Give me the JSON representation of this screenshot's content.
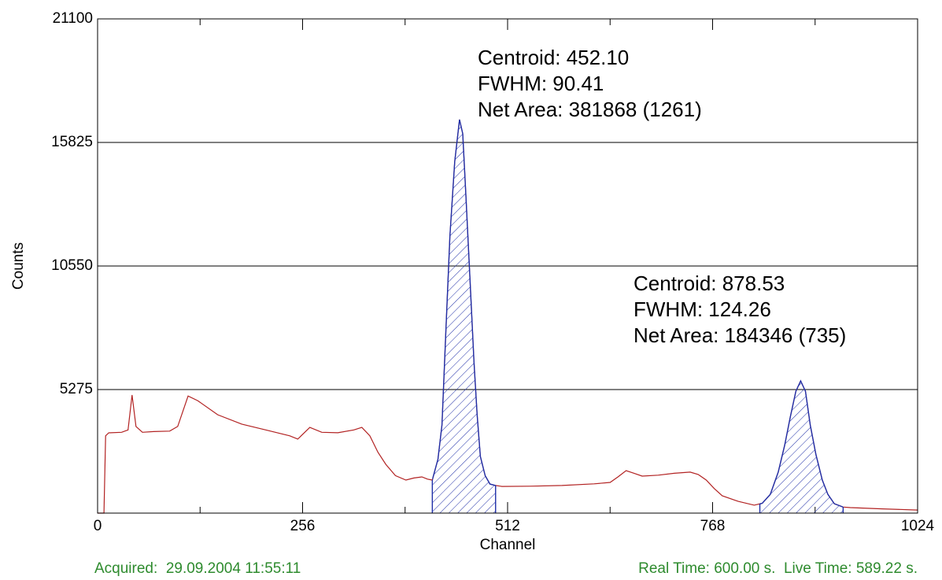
{
  "chart_data": {
    "type": "line",
    "xlabel": "Channel",
    "ylabel": "Counts",
    "series": [
      {
        "name": "spectrum",
        "color": "#b22222",
        "x": [
          0,
          8,
          10,
          14,
          30,
          38,
          43,
          48,
          56,
          70,
          90,
          100,
          113,
          125,
          150,
          180,
          210,
          240,
          250,
          265,
          280,
          300,
          320,
          330,
          340,
          350,
          360,
          372,
          385,
          395,
          405,
          412,
          418,
          425,
          430,
          435,
          440,
          446,
          452,
          456,
          460,
          465,
          470,
          474,
          478,
          484,
          490,
          497,
          505,
          540,
          580,
          620,
          640,
          650,
          660,
          670,
          680,
          700,
          720,
          740,
          750,
          760,
          770,
          780,
          800,
          820,
          830,
          840,
          850,
          858,
          865,
          872,
          878,
          884,
          890,
          897,
          905,
          912,
          920,
          931,
          940,
          980,
          1024
        ],
        "values": [
          0,
          0,
          3300,
          3427,
          3450,
          3550,
          5040,
          3700,
          3450,
          3480,
          3500,
          3700,
          5000,
          4800,
          4200,
          3800,
          3550,
          3300,
          3160,
          3660,
          3450,
          3430,
          3550,
          3660,
          3300,
          2600,
          2080,
          1600,
          1410,
          1500,
          1545,
          1450,
          1410,
          2300,
          3760,
          7800,
          11830,
          15000,
          16800,
          16200,
          13500,
          10000,
          6450,
          4200,
          2420,
          1600,
          1240,
          1180,
          1140,
          1150,
          1180,
          1250,
          1310,
          1550,
          1815,
          1700,
          1580,
          1620,
          1700,
          1750,
          1650,
          1410,
          1050,
          740,
          500,
          340,
          420,
          800,
          1750,
          2900,
          4100,
          5200,
          5645,
          5200,
          3760,
          2500,
          1410,
          800,
          400,
          260,
          235,
          180,
          130
        ]
      }
    ],
    "peak_color": "#1f2fa8",
    "peak_regions": [
      [
        418,
        497
      ],
      [
        827,
        931
      ]
    ],
    "annotations": [
      [
        "Centroid: 452.10",
        "FWHM: 90.41",
        "Net Area: 381868 (1261)"
      ],
      [
        "Centroid: 878.53",
        "FWHM: 124.26",
        "Net Area: 184346 (735)"
      ]
    ],
    "xlim": [
      0,
      1024
    ],
    "xticks": [
      0,
      256,
      512,
      768,
      1024
    ],
    "xminorticks": [
      128,
      384,
      640,
      896
    ],
    "ylim": [
      0,
      21100
    ],
    "yticks": [
      5275,
      10550,
      15825,
      21100
    ],
    "grid": true,
    "footer_left": "Acquired:  29.09.2004 11:55:11",
    "footer_right": "Real Time: 600.00 s.  Live Time: 589.22 s."
  }
}
